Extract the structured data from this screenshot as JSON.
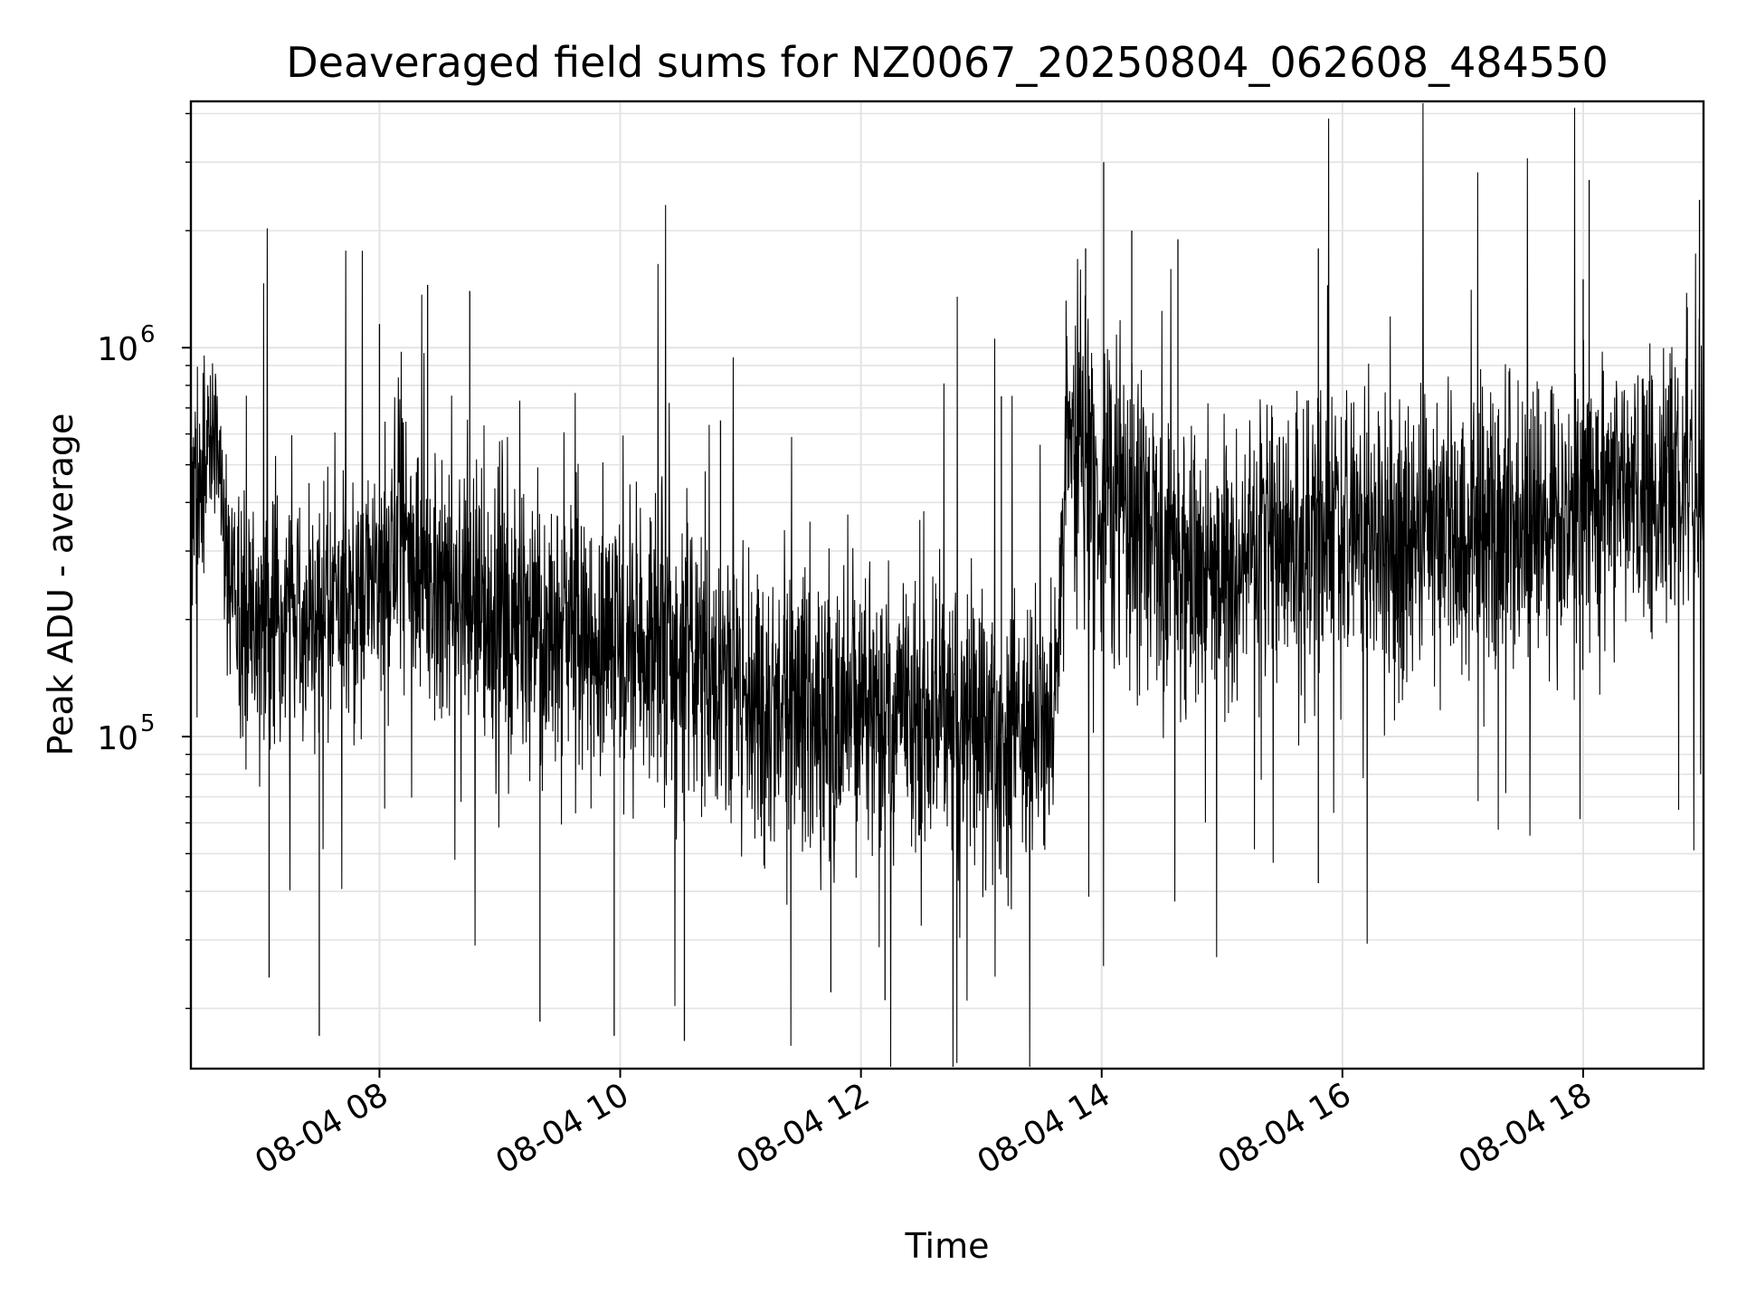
{
  "chart_data": {
    "type": "line",
    "title": "Deaveraged field sums for NZ0067_20250804_062608_484550",
    "xlabel": "Time",
    "ylabel": "Peak ADU - average",
    "y_scale": "log",
    "grid": true,
    "legend": "none",
    "line_color": "#000000",
    "xlim": [
      "2025-08-04 06:26",
      "2025-08-04 19:00"
    ],
    "ylim": [
      14000,
      4300000
    ],
    "x_ticks": [
      {
        "value": "2025-08-04 08:00",
        "label": "08-04 08"
      },
      {
        "value": "2025-08-04 10:00",
        "label": "08-04 10"
      },
      {
        "value": "2025-08-04 12:00",
        "label": "08-04 12"
      },
      {
        "value": "2025-08-04 14:00",
        "label": "08-04 14"
      },
      {
        "value": "2025-08-04 16:00",
        "label": "08-04 16"
      },
      {
        "value": "2025-08-04 18:00",
        "label": "08-04 18"
      }
    ],
    "y_ticks": [
      {
        "value": 100000,
        "base": "10",
        "exp": "5"
      },
      {
        "value": 1000000,
        "base": "10",
        "exp": "6"
      }
    ],
    "series": [
      {
        "x": [
          "2025-08-04 06:26",
          "2025-08-04 06:35",
          "2025-08-04 06:40",
          "2025-08-04 06:45",
          "2025-08-04 06:50",
          "2025-08-04 07:00",
          "2025-08-04 07:15",
          "2025-08-04 07:30",
          "2025-08-04 07:45",
          "2025-08-04 08:00",
          "2025-08-04 08:10",
          "2025-08-04 08:20",
          "2025-08-04 08:30",
          "2025-08-04 08:45",
          "2025-08-04 09:00",
          "2025-08-04 09:15",
          "2025-08-04 09:30",
          "2025-08-04 09:45",
          "2025-08-04 10:00",
          "2025-08-04 10:15",
          "2025-08-04 10:30",
          "2025-08-04 10:45",
          "2025-08-04 11:00",
          "2025-08-04 11:15",
          "2025-08-04 11:30",
          "2025-08-04 11:45",
          "2025-08-04 12:00",
          "2025-08-04 12:15",
          "2025-08-04 12:30",
          "2025-08-04 12:45",
          "2025-08-04 13:00",
          "2025-08-04 13:15",
          "2025-08-04 13:30",
          "2025-08-04 13:38",
          "2025-08-04 13:42",
          "2025-08-04 13:50",
          "2025-08-04 14:00",
          "2025-08-04 14:10",
          "2025-08-04 14:20",
          "2025-08-04 14:30",
          "2025-08-04 14:45",
          "2025-08-04 15:00",
          "2025-08-04 15:15",
          "2025-08-04 15:30",
          "2025-08-04 15:45",
          "2025-08-04 16:00",
          "2025-08-04 16:15",
          "2025-08-04 16:30",
          "2025-08-04 16:45",
          "2025-08-04 17:00",
          "2025-08-04 17:15",
          "2025-08-04 17:30",
          "2025-08-04 17:45",
          "2025-08-04 18:00",
          "2025-08-04 18:15",
          "2025-08-04 18:30",
          "2025-08-04 18:45",
          "2025-08-04 19:00"
        ],
        "y": [
          300000,
          600000,
          500000,
          220000,
          200000,
          190000,
          200000,
          210000,
          230000,
          260000,
          320000,
          280000,
          260000,
          230000,
          210000,
          190000,
          180000,
          175000,
          170000,
          165000,
          160000,
          150000,
          135000,
          120000,
          115000,
          115000,
          120000,
          115000,
          110000,
          108000,
          105000,
          100000,
          100000,
          120000,
          600000,
          500000,
          450000,
          380000,
          330000,
          290000,
          270000,
          280000,
          300000,
          310000,
          320000,
          330000,
          330000,
          330000,
          330000,
          340000,
          345000,
          350000,
          360000,
          380000,
          400000,
          420000,
          440000,
          460000
        ],
        "spread_factor": [
          2.2,
          1.6,
          1.5,
          2.0,
          2.0,
          2.0,
          2.0,
          2.0,
          2.0,
          2.0,
          2.2,
          2.2,
          2.2,
          2.1,
          2.1,
          2.1,
          2.2,
          2.2,
          2.3,
          2.3,
          2.3,
          2.2,
          2.2,
          2.2,
          2.2,
          2.2,
          2.2,
          2.2,
          2.2,
          2.2,
          2.2,
          2.2,
          2.0,
          2.0,
          2.4,
          2.3,
          2.4,
          2.2,
          2.2,
          2.2,
          2.2,
          2.2,
          2.2,
          2.2,
          2.2,
          2.2,
          2.2,
          2.2,
          2.1,
          2.1,
          2.1,
          2.1,
          2.1,
          2.2,
          2.2,
          2.2,
          2.3,
          2.4
        ]
      }
    ],
    "annotations": [
      {
        "x": "2025-08-04 07:05",
        "y": 24000
      },
      {
        "x": "2025-08-04 07:30",
        "y": 17000
      },
      {
        "x": "2025-08-04 08:00",
        "y": 1150000
      },
      {
        "x": "2025-08-04 08:24",
        "y": 1450000
      },
      {
        "x": "2025-08-04 08:45",
        "y": 1400000
      },
      {
        "x": "2025-08-04 09:20",
        "y": 18500
      },
      {
        "x": "2025-08-04 09:57",
        "y": 17000
      },
      {
        "x": "2025-08-04 10:32",
        "y": 16500
      },
      {
        "x": "2025-08-04 10:50",
        "y": 650000
      },
      {
        "x": "2025-08-04 11:45",
        "y": 22000
      },
      {
        "x": "2025-08-04 12:12",
        "y": 21000
      },
      {
        "x": "2025-08-04 13:10",
        "y": 750000
      },
      {
        "x": "2025-08-04 13:52",
        "y": 1800000
      },
      {
        "x": "2025-08-04 14:01",
        "y": 3000000
      },
      {
        "x": "2025-08-04 14:15",
        "y": 2000000
      },
      {
        "x": "2025-08-04 14:38",
        "y": 1900000
      },
      {
        "x": "2025-08-04 15:48",
        "y": 1800000
      },
      {
        "x": "2025-08-04 15:48",
        "y": 42000
      },
      {
        "x": "2025-08-04 18:00",
        "y": 1500000
      },
      {
        "x": "2025-08-04 18:03",
        "y": 2700000
      },
      {
        "x": "2025-08-04 18:58",
        "y": 2400000
      }
    ]
  }
}
